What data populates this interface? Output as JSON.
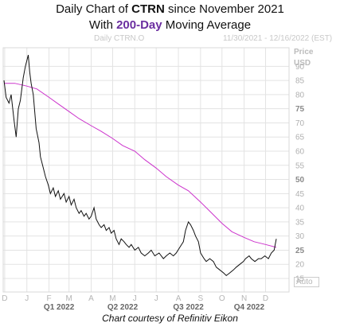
{
  "title": {
    "line1_prefix": "Daily Chart of ",
    "line1_ticker": "CTRN",
    "line1_suffix": " since November 2021",
    "line2_prefix": "With ",
    "line2_highlight": "200-Day",
    "line2_suffix": " Moving Average"
  },
  "header": {
    "instrument": "Daily CTRN.O",
    "date_range": "11/30/2021 - 12/16/2022 (EST)"
  },
  "axis_header": {
    "line1": "Price",
    "line2": "USD"
  },
  "auto_label": "Auto",
  "credit": "Chart courtesy of Refinitiv Eikon",
  "colors": {
    "price_line": "#111111",
    "ma_line": "#cc33cc",
    "grid": "#e3e3e3",
    "title_accent": "#6b2fa0"
  },
  "chart_data": {
    "type": "line",
    "title": "Daily Chart of CTRN since November 2021 With 200-Day Moving Average",
    "xlabel": "",
    "ylabel": "Price USD",
    "ylim": [
      15,
      96
    ],
    "yticks": [
      15,
      20,
      25,
      30,
      35,
      40,
      45,
      50,
      55,
      60,
      65,
      70,
      75,
      80,
      85,
      90
    ],
    "ytick_bold": [
      25,
      50,
      75
    ],
    "x_range": [
      "2021-11-30",
      "2022-12-16"
    ],
    "month_ticks": [
      {
        "label": "D",
        "date": "2021-12-01"
      },
      {
        "label": "J",
        "date": "2022-01-01"
      },
      {
        "label": "F",
        "date": "2022-02-01"
      },
      {
        "label": "M",
        "date": "2022-03-01"
      },
      {
        "label": "A",
        "date": "2022-04-01"
      },
      {
        "label": "M",
        "date": "2022-05-01"
      },
      {
        "label": "J",
        "date": "2022-06-01"
      },
      {
        "label": "J",
        "date": "2022-07-01"
      },
      {
        "label": "A",
        "date": "2022-08-01"
      },
      {
        "label": "S",
        "date": "2022-09-01"
      },
      {
        "label": "O",
        "date": "2022-10-01"
      },
      {
        "label": "N",
        "date": "2022-11-01"
      },
      {
        "label": "D",
        "date": "2022-12-01"
      }
    ],
    "quarter_ticks": [
      {
        "label": "Q1 2022",
        "date": "2022-02-15"
      },
      {
        "label": "Q2 2022",
        "date": "2022-05-15"
      },
      {
        "label": "Q3 2022",
        "date": "2022-08-15"
      },
      {
        "label": "Q4 2022",
        "date": "2022-11-08"
      }
    ],
    "grid": true,
    "series": [
      {
        "name": "CTRN",
        "points": [
          [
            "2021-11-30",
            85
          ],
          [
            "2021-12-03",
            79
          ],
          [
            "2021-12-07",
            77
          ],
          [
            "2021-12-10",
            80
          ],
          [
            "2021-12-14",
            71
          ],
          [
            "2021-12-17",
            65
          ],
          [
            "2021-12-20",
            75
          ],
          [
            "2021-12-23",
            78
          ],
          [
            "2021-12-27",
            86
          ],
          [
            "2021-12-30",
            90
          ],
          [
            "2022-01-03",
            94
          ],
          [
            "2022-01-05",
            88
          ],
          [
            "2022-01-07",
            84
          ],
          [
            "2022-01-10",
            80
          ],
          [
            "2022-01-12",
            74
          ],
          [
            "2022-01-14",
            68
          ],
          [
            "2022-01-18",
            63
          ],
          [
            "2022-01-20",
            58
          ],
          [
            "2022-01-24",
            54
          ],
          [
            "2022-01-27",
            51
          ],
          [
            "2022-01-31",
            48
          ],
          [
            "2022-02-03",
            45
          ],
          [
            "2022-02-07",
            47
          ],
          [
            "2022-02-10",
            44
          ],
          [
            "2022-02-14",
            46
          ],
          [
            "2022-02-17",
            43
          ],
          [
            "2022-02-22",
            45
          ],
          [
            "2022-02-25",
            42
          ],
          [
            "2022-03-01",
            44
          ],
          [
            "2022-03-04",
            41
          ],
          [
            "2022-03-08",
            43
          ],
          [
            "2022-03-11",
            40
          ],
          [
            "2022-03-15",
            38
          ],
          [
            "2022-03-18",
            39
          ],
          [
            "2022-03-22",
            37
          ],
          [
            "2022-03-25",
            38
          ],
          [
            "2022-03-29",
            36
          ],
          [
            "2022-04-01",
            37
          ],
          [
            "2022-04-05",
            40
          ],
          [
            "2022-04-08",
            36
          ],
          [
            "2022-04-12",
            34
          ],
          [
            "2022-04-15",
            33
          ],
          [
            "2022-04-19",
            34
          ],
          [
            "2022-04-22",
            32
          ],
          [
            "2022-04-26",
            33
          ],
          [
            "2022-04-29",
            31
          ],
          [
            "2022-05-03",
            32
          ],
          [
            "2022-05-06",
            29
          ],
          [
            "2022-05-10",
            27
          ],
          [
            "2022-05-13",
            29
          ],
          [
            "2022-05-17",
            28
          ],
          [
            "2022-05-20",
            27
          ],
          [
            "2022-05-24",
            26
          ],
          [
            "2022-05-27",
            27
          ],
          [
            "2022-06-01",
            25
          ],
          [
            "2022-06-06",
            26
          ],
          [
            "2022-06-10",
            24
          ],
          [
            "2022-06-15",
            23
          ],
          [
            "2022-06-20",
            24
          ],
          [
            "2022-06-24",
            25
          ],
          [
            "2022-06-29",
            23
          ],
          [
            "2022-07-05",
            24
          ],
          [
            "2022-07-11",
            22
          ],
          [
            "2022-07-15",
            23
          ],
          [
            "2022-07-20",
            24
          ],
          [
            "2022-07-25",
            23
          ],
          [
            "2022-07-29",
            24
          ],
          [
            "2022-08-03",
            26
          ],
          [
            "2022-08-08",
            28
          ],
          [
            "2022-08-11",
            32
          ],
          [
            "2022-08-15",
            35
          ],
          [
            "2022-08-18",
            34
          ],
          [
            "2022-08-22",
            32
          ],
          [
            "2022-08-25",
            30
          ],
          [
            "2022-08-29",
            28
          ],
          [
            "2022-09-01",
            24
          ],
          [
            "2022-09-06",
            22
          ],
          [
            "2022-09-09",
            21
          ],
          [
            "2022-09-14",
            22
          ],
          [
            "2022-09-19",
            21
          ],
          [
            "2022-09-23",
            19
          ],
          [
            "2022-09-28",
            18
          ],
          [
            "2022-10-03",
            17
          ],
          [
            "2022-10-07",
            16
          ],
          [
            "2022-10-12",
            17
          ],
          [
            "2022-10-17",
            18
          ],
          [
            "2022-10-21",
            19
          ],
          [
            "2022-10-26",
            20
          ],
          [
            "2022-10-31",
            21
          ],
          [
            "2022-11-03",
            22
          ],
          [
            "2022-11-08",
            23
          ],
          [
            "2022-11-11",
            22
          ],
          [
            "2022-11-16",
            21
          ],
          [
            "2022-11-21",
            22
          ],
          [
            "2022-11-25",
            22
          ],
          [
            "2022-11-30",
            23
          ],
          [
            "2022-12-05",
            22
          ],
          [
            "2022-12-09",
            24
          ],
          [
            "2022-12-13",
            25
          ],
          [
            "2022-12-16",
            29
          ]
        ]
      },
      {
        "name": "200-Day Moving Average",
        "points": [
          [
            "2021-11-30",
            84
          ],
          [
            "2021-12-15",
            84
          ],
          [
            "2022-01-01",
            83
          ],
          [
            "2022-01-15",
            82
          ],
          [
            "2022-02-01",
            79
          ],
          [
            "2022-02-15",
            76.5
          ],
          [
            "2022-03-01",
            74
          ],
          [
            "2022-03-15",
            71.5
          ],
          [
            "2022-04-01",
            69
          ],
          [
            "2022-04-15",
            67
          ],
          [
            "2022-05-01",
            64.5
          ],
          [
            "2022-05-15",
            62
          ],
          [
            "2022-06-01",
            60
          ],
          [
            "2022-06-15",
            57
          ],
          [
            "2022-07-01",
            54
          ],
          [
            "2022-07-15",
            51
          ],
          [
            "2022-08-01",
            48
          ],
          [
            "2022-08-15",
            46
          ],
          [
            "2022-09-01",
            42
          ],
          [
            "2022-09-15",
            38.5
          ],
          [
            "2022-10-01",
            34.5
          ],
          [
            "2022-10-15",
            31.5
          ],
          [
            "2022-11-01",
            29.5
          ],
          [
            "2022-11-15",
            28
          ],
          [
            "2022-12-01",
            27
          ],
          [
            "2022-12-16",
            26
          ]
        ]
      }
    ]
  }
}
